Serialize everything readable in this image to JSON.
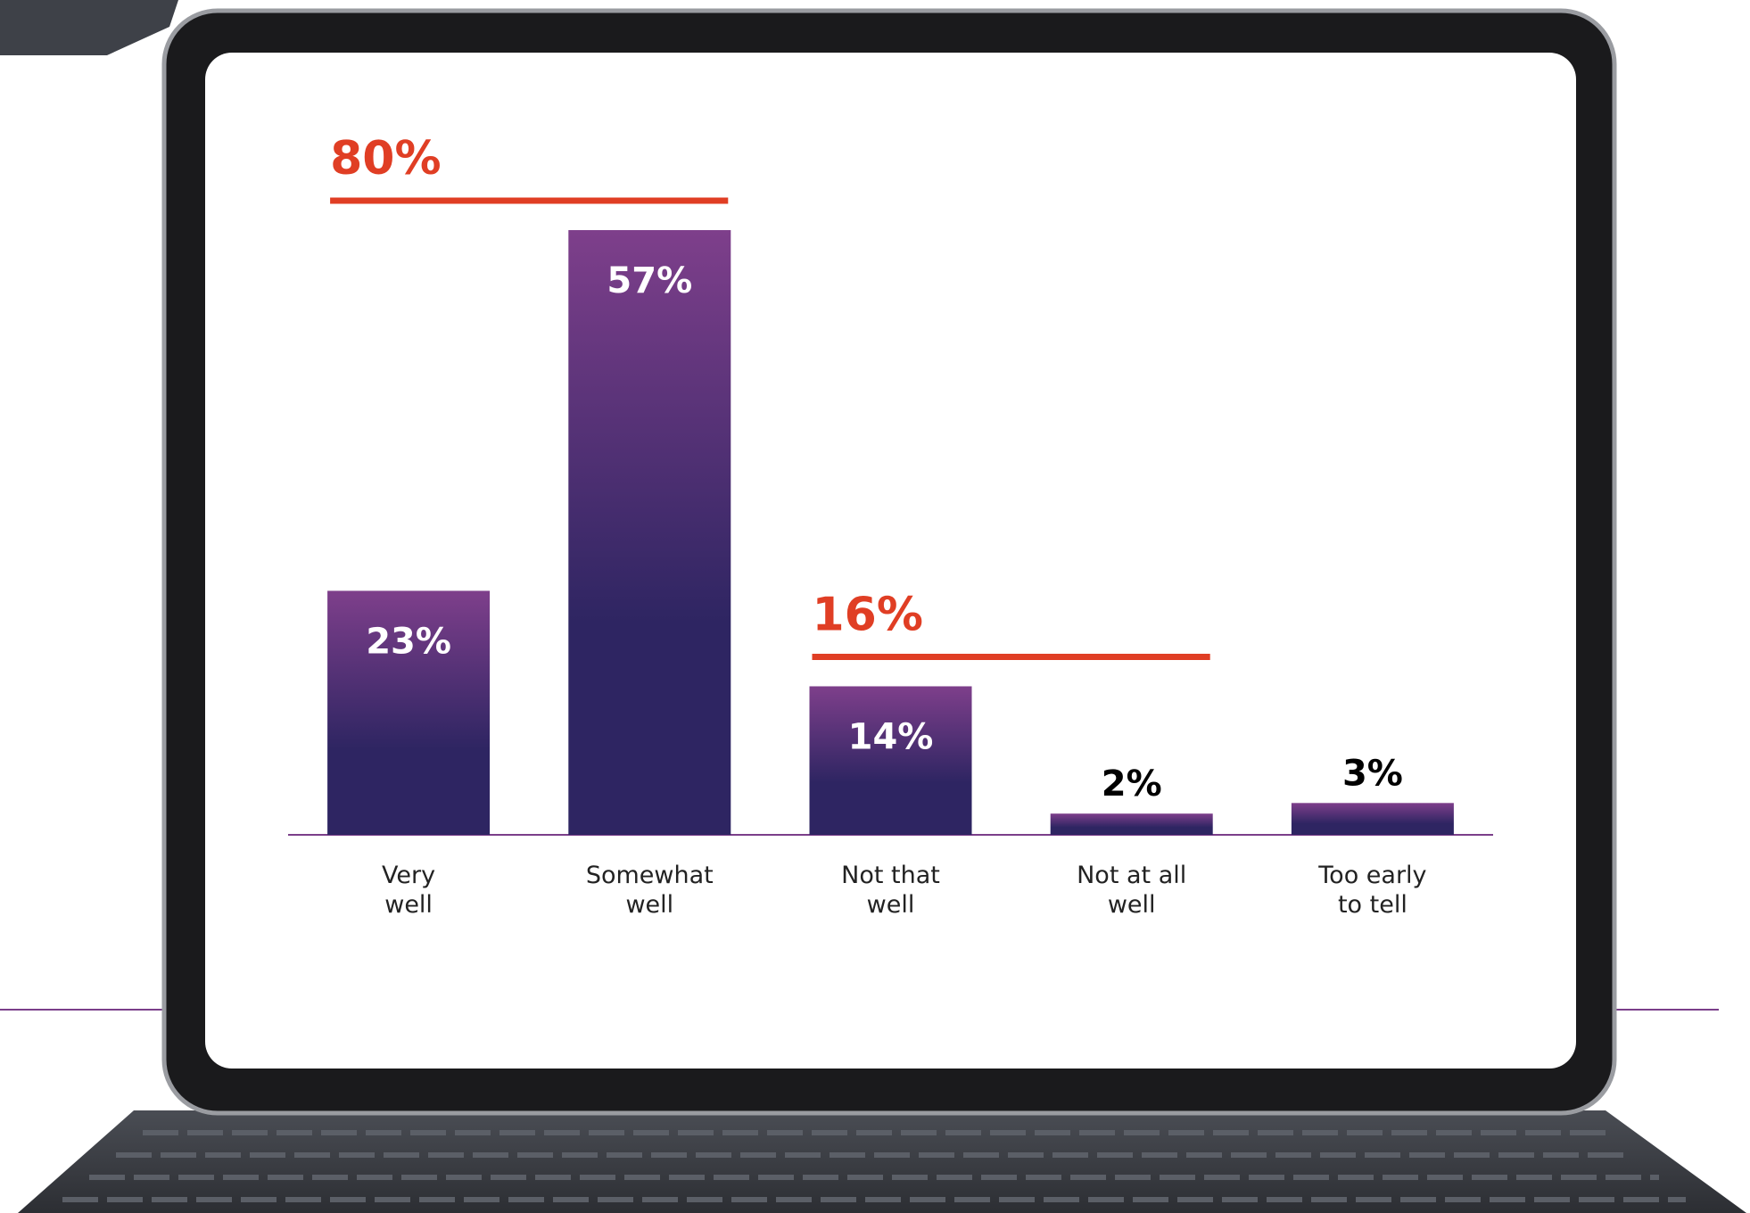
{
  "chart_data": {
    "type": "bar",
    "categories": [
      "Very\nwell",
      "Somewhat\nwell",
      "Not that\nwell",
      "Not at all\nwell",
      "Too early\nto tell"
    ],
    "values": [
      23,
      57,
      14,
      2,
      3
    ],
    "value_labels": [
      "23%",
      "57%",
      "14%",
      "2%",
      "3%"
    ],
    "color": [
      "#7e3f8b",
      "#2e2562"
    ],
    "annotations": [
      {
        "label": "80%",
        "value": 80,
        "from": 0,
        "to": 1,
        "color": "#e03e24"
      },
      {
        "label": "16%",
        "value": 16,
        "from": 2,
        "to": 3,
        "color": "#e03e24"
      }
    ]
  }
}
